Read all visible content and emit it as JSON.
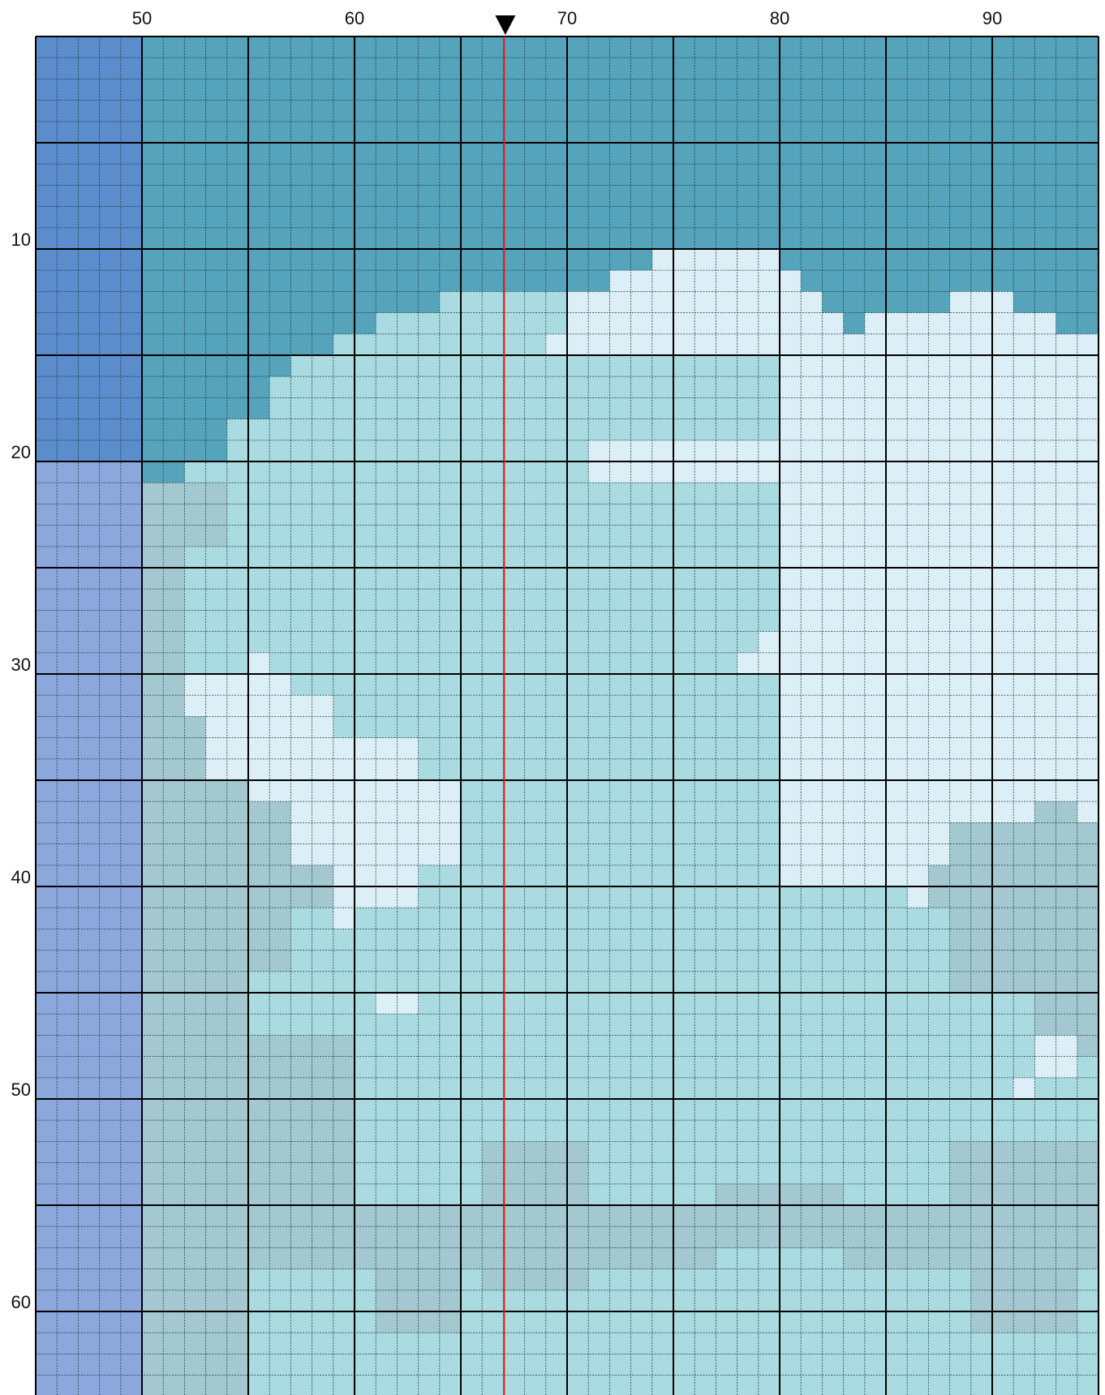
{
  "pattern": {
    "col_start": 45,
    "row_start": 1,
    "col_count": 50,
    "row_count": 65,
    "column_labels": [
      {
        "value": 50,
        "text": "50"
      },
      {
        "value": 60,
        "text": "60"
      },
      {
        "value": 70,
        "text": "70"
      },
      {
        "value": 80,
        "text": "80"
      },
      {
        "value": 90,
        "text": "90"
      }
    ],
    "row_labels": [
      {
        "value": 10,
        "text": "10"
      },
      {
        "value": 20,
        "text": "20"
      },
      {
        "value": 30,
        "text": "30"
      },
      {
        "value": 40,
        "text": "40"
      },
      {
        "value": 50,
        "text": "50"
      },
      {
        "value": 60,
        "text": "60"
      }
    ],
    "center_marker_column": 67,
    "colors": {
      "blue": "#5B8CCB",
      "lavender": "#8CA7DC",
      "teal": "#55A4BB",
      "aqua": "#A9DBE0",
      "ice": "#DCEEF6",
      "grey": "#A3C8D0",
      "grid_fine": "#1E3A40",
      "grid_major": "#000000",
      "center_line": "#E02020",
      "marker": "#000000"
    },
    "regions": [
      {
        "color": "blue",
        "cols": [
          45,
          49
        ],
        "rows": [
          1,
          20
        ]
      },
      {
        "color": "lavender",
        "cols": [
          45,
          49
        ],
        "rows": [
          21,
          65
        ]
      },
      {
        "color": "teal",
        "cols": [
          50,
          94
        ],
        "rows": [
          1,
          10
        ]
      },
      {
        "color": "teal",
        "cols": [
          50,
          94
        ],
        "rows": [
          11,
          21
        ]
      },
      {
        "color": "aqua",
        "cols": [
          50,
          94
        ],
        "rows": [
          22,
          65
        ]
      },
      {
        "color": "aqua",
        "cols": [
          64,
          69
        ],
        "rows": [
          13,
          21
        ]
      },
      {
        "color": "aqua",
        "cols": [
          61,
          69
        ],
        "rows": [
          14,
          21
        ]
      },
      {
        "color": "aqua",
        "cols": [
          59,
          69
        ],
        "rows": [
          15,
          21
        ]
      },
      {
        "color": "aqua",
        "cols": [
          57,
          69
        ],
        "rows": [
          16,
          21
        ]
      },
      {
        "color": "aqua",
        "cols": [
          56,
          69
        ],
        "rows": [
          17,
          21
        ]
      },
      {
        "color": "aqua",
        "cols": [
          54,
          69
        ],
        "rows": [
          19,
          21
        ]
      },
      {
        "color": "aqua",
        "cols": [
          52,
          69
        ],
        "rows": [
          21,
          21
        ]
      },
      {
        "color": "aqua",
        "cols": [
          67,
          72
        ],
        "rows": [
          13,
          21
        ]
      },
      {
        "color": "aqua",
        "cols": [
          69,
          80
        ],
        "rows": [
          14,
          21
        ]
      },
      {
        "color": "ice",
        "cols": [
          72,
          80
        ],
        "rows": [
          12,
          21
        ]
      },
      {
        "color": "ice",
        "cols": [
          74,
          79
        ],
        "rows": [
          11,
          11
        ]
      },
      {
        "color": "ice",
        "cols": [
          70,
          81
        ],
        "rows": [
          13,
          13
        ]
      },
      {
        "color": "ice",
        "cols": [
          70,
          82
        ],
        "rows": [
          14,
          14
        ]
      },
      {
        "color": "ice",
        "cols": [
          69,
          94
        ],
        "rows": [
          15,
          15
        ]
      },
      {
        "color": "ice",
        "cols": [
          71,
          94
        ],
        "rows": [
          16,
          21
        ]
      },
      {
        "color": "ice",
        "cols": [
          84,
          87
        ],
        "rows": [
          14,
          15
        ]
      },
      {
        "color": "ice",
        "cols": [
          88,
          90
        ],
        "rows": [
          13,
          15
        ]
      },
      {
        "color": "ice",
        "cols": [
          90,
          92
        ],
        "rows": [
          14,
          15
        ]
      },
      {
        "color": "ice",
        "cols": [
          79,
          94
        ],
        "rows": [
          20,
          21
        ]
      },
      {
        "color": "ice",
        "cols": [
          80,
          94
        ],
        "rows": [
          22,
          40
        ]
      },
      {
        "color": "ice",
        "cols": [
          79,
          94
        ],
        "rows": [
          29,
          30
        ]
      },
      {
        "color": "ice",
        "cols": [
          78,
          94
        ],
        "rows": [
          30,
          30
        ]
      },
      {
        "color": "aqua",
        "cols": [
          67,
          79
        ],
        "rows": [
          16,
          19
        ]
      },
      {
        "color": "aqua",
        "cols": [
          78,
          79
        ],
        "rows": [
          19,
          19
        ]
      },
      {
        "color": "grey",
        "cols": [
          50,
          51
        ],
        "rows": [
          22,
          65
        ]
      },
      {
        "color": "grey",
        "cols": [
          52,
          53
        ],
        "rows": [
          22,
          24
        ]
      },
      {
        "color": "aqua",
        "cols": [
          52,
          53
        ],
        "rows": [
          25,
          31
        ]
      },
      {
        "color": "grey",
        "cols": [
          50,
          52
        ],
        "rows": [
          32,
          65
        ]
      },
      {
        "color": "ice",
        "cols": [
          55,
          55
        ],
        "rows": [
          30,
          30
        ]
      },
      {
        "color": "ice",
        "cols": [
          52,
          56
        ],
        "rows": [
          31,
          32
        ]
      },
      {
        "color": "ice",
        "cols": [
          53,
          58
        ],
        "rows": [
          32,
          33
        ]
      },
      {
        "color": "ice",
        "cols": [
          53,
          62
        ],
        "rows": [
          34,
          35
        ]
      },
      {
        "color": "ice",
        "cols": [
          55,
          64
        ],
        "rows": [
          36,
          36
        ]
      },
      {
        "color": "ice",
        "cols": [
          56,
          64
        ],
        "rows": [
          37,
          38
        ]
      },
      {
        "color": "ice",
        "cols": [
          57,
          64
        ],
        "rows": [
          39,
          39
        ]
      },
      {
        "color": "ice",
        "cols": [
          58,
          62
        ],
        "rows": [
          40,
          41
        ]
      },
      {
        "color": "ice",
        "cols": [
          59,
          59
        ],
        "rows": [
          42,
          42
        ]
      },
      {
        "color": "ice",
        "cols": [
          61,
          62
        ],
        "rows": [
          46,
          46
        ]
      },
      {
        "color": "grey",
        "cols": [
          53,
          54
        ],
        "rows": [
          36,
          65
        ]
      },
      {
        "color": "grey",
        "cols": [
          55,
          56
        ],
        "rows": [
          37,
          44
        ]
      },
      {
        "color": "grey",
        "cols": [
          57,
          58
        ],
        "rows": [
          40,
          41
        ]
      },
      {
        "color": "ice",
        "cols": [
          81,
          83
        ],
        "rows": [
          33,
          33
        ]
      },
      {
        "color": "ice",
        "cols": [
          82,
          86
        ],
        "rows": [
          34,
          36
        ]
      },
      {
        "color": "ice",
        "cols": [
          83,
          88
        ],
        "rows": [
          37,
          39
        ]
      },
      {
        "color": "ice",
        "cols": [
          85,
          87
        ],
        "rows": [
          40,
          40
        ]
      },
      {
        "color": "ice",
        "cols": [
          86,
          86
        ],
        "rows": [
          41,
          41
        ]
      },
      {
        "color": "grey",
        "cols": [
          92,
          93
        ],
        "rows": [
          37,
          38
        ]
      },
      {
        "color": "grey",
        "cols": [
          88,
          94
        ],
        "rows": [
          38,
          45
        ]
      },
      {
        "color": "grey",
        "cols": [
          87,
          94
        ],
        "rows": [
          40,
          41
        ]
      },
      {
        "color": "grey",
        "cols": [
          92,
          94
        ],
        "rows": [
          45,
          48
        ]
      },
      {
        "color": "ice",
        "cols": [
          92,
          93
        ],
        "rows": [
          48,
          49
        ]
      },
      {
        "color": "ice",
        "cols": [
          91,
          91
        ],
        "rows": [
          50,
          50
        ]
      },
      {
        "color": "grey",
        "cols": [
          55,
          59
        ],
        "rows": [
          48,
          58
        ]
      },
      {
        "color": "grey",
        "cols": [
          60,
          65
        ],
        "rows": [
          56,
          58
        ]
      },
      {
        "color": "grey",
        "cols": [
          66,
          70
        ],
        "rows": [
          53,
          59
        ]
      },
      {
        "color": "grey",
        "cols": [
          71,
          76
        ],
        "rows": [
          56,
          58
        ]
      },
      {
        "color": "grey",
        "cols": [
          77,
          82
        ],
        "rows": [
          55,
          57
        ]
      },
      {
        "color": "grey",
        "cols": [
          83,
          87
        ],
        "rows": [
          56,
          58
        ]
      },
      {
        "color": "grey",
        "cols": [
          88,
          94
        ],
        "rows": [
          53,
          58
        ]
      },
      {
        "color": "grey",
        "cols": [
          61,
          64
        ],
        "rows": [
          59,
          61
        ]
      },
      {
        "color": "grey",
        "cols": [
          89,
          93
        ],
        "rows": [
          59,
          61
        ]
      }
    ]
  }
}
